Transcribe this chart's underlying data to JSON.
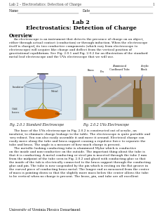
{
  "header_text": "Lab 2 – Electrostatics: Detection of Charge",
  "page_number": "1",
  "name_label": "Name",
  "date_label": "Date",
  "title_line1": "Lab 2",
  "title_line2": "Electrostatics: Detection of Charge",
  "section_overview": "Overview",
  "overview_indent": "     An electroscope is an instrument that detects the presence of charge on an object,\neither through actual contact (conduction) or through induction. When the electroscope\nitself is charged, its two conductive components (which vary from electroscope to\nelectroscope) will acquire like charge and deflect from the vertical position of\ngravitational equilibrium. See Fig. 2.0.1 and Fig. 2.0.2 for an illustration of the standard\nmetal leaf electroscope and the UVa electroscope that we will use.",
  "fig1_caption": "Fig. 2.0.1 Standard Electroscope",
  "fig2_caption": "Fig. 2.0.2 UVa Electroscope",
  "fig2_label_brass": "Brass",
  "fig2_label_pin": "Pin",
  "fig2_label_tube": "Aluminized\nCardboard Tube",
  "fig2_label_acrylic": "Acrylic\nBlock",
  "body_text1": "     The base of the UVa electroscope in Fig. 2.0.2 is constructed out of acrylic, an\ninsulator, to eliminate charge leakage to the table. The electroscope is quite portable and\nvery robust. You can also easily assemble it and move it around. Electrical charge can\neasily move along the tube and brass support causing a repulsive force to separate the\ntube and brass. The angle is a measure of how much charge is present.",
  "body_text2": "     The metallic looking conducting tube is aluminized Mylar which is conductive\non the inside and non-conductive on the outside. The important thing about the tube is\nthat it is conducting. A metal conducting or steel pin is inserted through the tube 2 mm\nfrom the midpoint of the tube seen in Fig. 2.0.2 and glued with conducting glue so that\nthe inside of the tub is electrically connected to the brass support through the conducting\nglue and pin. The tube is now suspended by the pin which is resting on the flat groove in\nthe curved piece of conducting brass metal. The longer end as measured from the center\nof mass is pointing down so that the slightly more mass below the center allows the tube\nto be vertical when no charge is present. The brass, pin, and tube are all excellent",
  "footer_text": "University of Virginia Physics Department",
  "bg_color": "#ffffff",
  "text_color": "#1a1a1a",
  "header_color": "#444444",
  "line_color": "#888888",
  "body_fontsize": 3.2,
  "header_fontsize": 3.3
}
